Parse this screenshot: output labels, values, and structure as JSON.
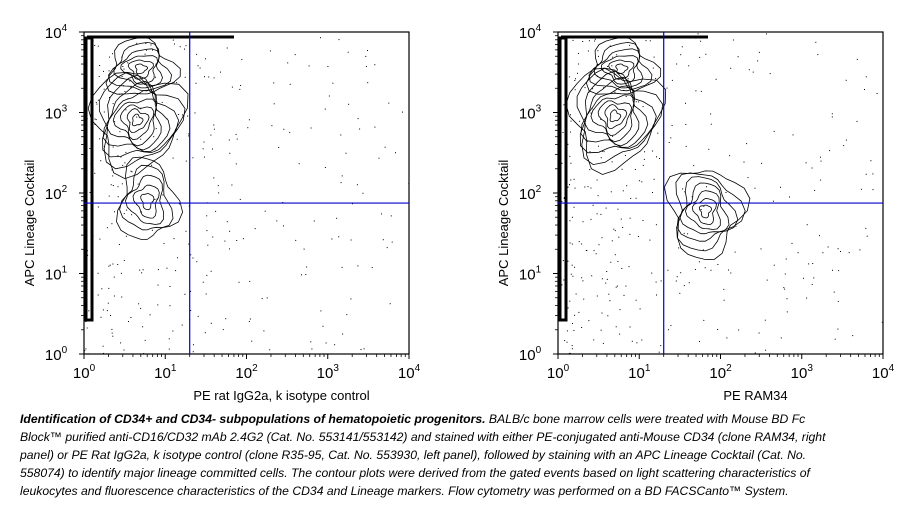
{
  "chart_data": [
    {
      "type": "contour",
      "panel": "left",
      "xlabel": "PE rat IgG2a, k isotype control",
      "ylabel": "APC Lineage Cocktail",
      "xscale": "log",
      "yscale": "log",
      "xlim": [
        1,
        10000
      ],
      "ylim": [
        1,
        10000
      ],
      "ticks": [
        {
          "base": "10",
          "exp": "0"
        },
        {
          "base": "10",
          "exp": "1"
        },
        {
          "base": "10",
          "exp": "2"
        },
        {
          "base": "10",
          "exp": "3"
        },
        {
          "base": "10",
          "exp": "4"
        }
      ],
      "gate_x": 20,
      "gate_y": 75,
      "populations": [
        {
          "x": 4.5,
          "y": 800,
          "spread_x": 0.55,
          "spread_y": 0.6,
          "levels": 9
        },
        {
          "x": 5,
          "y": 3500,
          "spread_x": 0.4,
          "spread_y": 0.35,
          "levels": 6
        },
        {
          "x": 6,
          "y": 80,
          "spread_x": 0.35,
          "spread_y": 0.5,
          "levels": 5
        }
      ],
      "gate_color": "#0000cc"
    },
    {
      "type": "contour",
      "panel": "right",
      "xlabel": "PE RAM34",
      "ylabel": "APC Lineage Cocktail",
      "xscale": "log",
      "yscale": "log",
      "xlim": [
        1,
        10000
      ],
      "ylim": [
        1,
        10000
      ],
      "ticks": [
        {
          "base": "10",
          "exp": "0"
        },
        {
          "base": "10",
          "exp": "1"
        },
        {
          "base": "10",
          "exp": "2"
        },
        {
          "base": "10",
          "exp": "3"
        },
        {
          "base": "10",
          "exp": "4"
        }
      ],
      "gate_x": 20,
      "gate_y": 75,
      "populations": [
        {
          "x": 5,
          "y": 900,
          "spread_x": 0.55,
          "spread_y": 0.6,
          "levels": 9
        },
        {
          "x": 6,
          "y": 3500,
          "spread_x": 0.4,
          "spread_y": 0.35,
          "levels": 6
        },
        {
          "x": 65,
          "y": 60,
          "spread_x": 0.45,
          "spread_y": 0.55,
          "levels": 7
        }
      ],
      "gate_color": "#0000cc"
    }
  ],
  "caption": {
    "lead": "Identification of CD34+ and CD34- subpopulations of hematopoietic progenitors.",
    "body": "BALB/c bone marrow cells were treated with Mouse BD Fc Block™ purified anti-CD16/CD32 mAb 2.4G2 (Cat. No. 553141/553142) and stained with either PE-conjugated anti-Mouse CD34 (clone RAM34, right panel) or PE Rat IgG2a, k isotype control (clone R35-95, Cat. No. 553930, left panel), followed by staining with an APC Lineage Cocktail (Cat. No. 558074) to identify major lineage committed cells. The contour plots were derived from the gated events based on light scattering characteristics of leukocytes and fluorescence characteristics of the CD34 and Lineage markers. Flow cytometry was performed on a BD FACSCanto™ System."
  }
}
